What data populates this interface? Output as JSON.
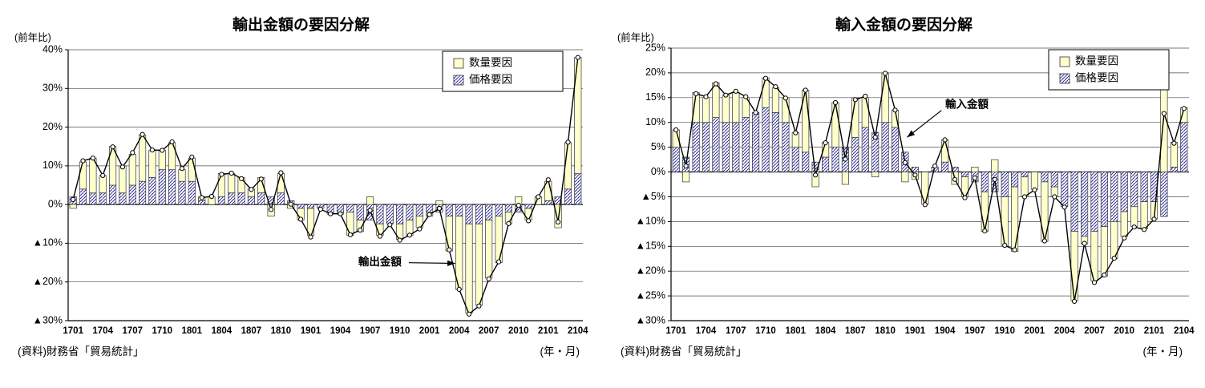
{
  "chart_data": [
    {
      "type": "bar",
      "title": "輸出金額の要因分解",
      "axis_note": "(前年比)",
      "xlabel_note": "(年・月)",
      "source": "(資料)財務省「貿易統計」",
      "legend": [
        "数量要因",
        "価格要因"
      ],
      "ylim": [
        -30,
        40
      ],
      "ytick_step": 10,
      "negative_tick_prefix": "▲",
      "colors": {
        "quantity": "#FFFFCC",
        "price_hatch": "#3333A0",
        "line": "#000000"
      },
      "categories": [
        "1701",
        "1702",
        "1703",
        "1704",
        "1705",
        "1706",
        "1707",
        "1708",
        "1709",
        "1710",
        "1711",
        "1712",
        "1801",
        "1802",
        "1803",
        "1804",
        "1805",
        "1806",
        "1807",
        "1808",
        "1809",
        "1810",
        "1811",
        "1812",
        "1901",
        "1902",
        "1903",
        "1904",
        "1905",
        "1906",
        "1907",
        "1908",
        "1909",
        "1910",
        "1911",
        "1912",
        "2001",
        "2002",
        "2003",
        "2004",
        "2005",
        "2006",
        "2007",
        "2008",
        "2009",
        "2010",
        "2011",
        "2012",
        "2101",
        "2102",
        "2103",
        "2104"
      ],
      "x_tick_labels": [
        "1701",
        "1704",
        "1707",
        "1710",
        "1801",
        "1804",
        "1807",
        "1810",
        "1901",
        "1904",
        "1907",
        "1910",
        "2001",
        "2004",
        "2007",
        "2010",
        "2101",
        "2104"
      ],
      "series": [
        {
          "name": "数量要因",
          "type": "bar",
          "values": [
            -1,
            7,
            9,
            4.5,
            10,
            7,
            8,
            12,
            7,
            5,
            7,
            3,
            6,
            1,
            2,
            6,
            5,
            4,
            2,
            4,
            -3,
            5,
            -1,
            -3,
            -7,
            0,
            -0.5,
            -0.5,
            -6,
            -3,
            2,
            -3,
            0,
            -4,
            -4,
            -3,
            -1,
            1,
            -9,
            -19,
            -23,
            -21,
            -15,
            -12,
            -3,
            2,
            -3,
            2,
            5,
            -6,
            12,
            30
          ]
        },
        {
          "name": "価格要因",
          "type": "bar",
          "values": [
            2,
            4,
            3,
            3,
            5,
            3,
            5,
            6,
            7,
            9,
            9,
            6,
            6,
            1,
            0,
            2,
            3,
            3,
            2,
            3,
            2,
            3,
            1,
            -1,
            -1,
            -1,
            -2,
            -2,
            -2,
            -4,
            -4,
            -5,
            -5,
            -5,
            -4,
            -3,
            -2,
            -2,
            -3,
            -3,
            -5,
            -5,
            -4,
            -3,
            -2,
            -2,
            -1,
            0,
            1,
            2,
            4,
            8
          ]
        },
        {
          "name": "輸出金額",
          "type": "line",
          "values": [
            1.3,
            11.3,
            12,
            7.5,
            14.9,
            9.7,
            13.4,
            18.1,
            14.1,
            14,
            16.2,
            9.3,
            12.3,
            1.8,
            2.1,
            7.8,
            8.1,
            6.7,
            3.9,
            6.6,
            -1.3,
            8.2,
            0.1,
            -3.8,
            -8.4,
            -1.2,
            -2.4,
            -2.4,
            -7.8,
            -6.6,
            -1.5,
            -8.2,
            -5.2,
            -9.2,
            -7.9,
            -6.3,
            -2.6,
            -1,
            -11.7,
            -21.9,
            -28.3,
            -26.2,
            -19.2,
            -14.8,
            -4.9,
            -0.2,
            -4.2,
            2,
            6.4,
            -4.5,
            16.1,
            38
          ]
        }
      ],
      "annotation": {
        "text": "輸出金額",
        "text_cat": 31,
        "text_value": -15,
        "tip_cat": 38.6,
        "tip_value": -15.2
      }
    },
    {
      "type": "bar",
      "title": "輸入金額の要因分解",
      "axis_note": "(前年比)",
      "xlabel_note": "(年・月)",
      "source": "(資料)財務省「貿易統計」",
      "legend": [
        "数量要因",
        "価格要因"
      ],
      "ylim": [
        -30,
        25
      ],
      "ytick_step": 5,
      "negative_tick_prefix": "▲",
      "colors": {
        "quantity": "#FFFFCC",
        "price_hatch": "#3333A0",
        "line": "#000000"
      },
      "categories": [
        "1701",
        "1702",
        "1703",
        "1704",
        "1705",
        "1706",
        "1707",
        "1708",
        "1709",
        "1710",
        "1711",
        "1712",
        "1801",
        "1802",
        "1803",
        "1804",
        "1805",
        "1806",
        "1807",
        "1808",
        "1809",
        "1810",
        "1811",
        "1812",
        "1901",
        "1902",
        "1903",
        "1904",
        "1905",
        "1906",
        "1907",
        "1908",
        "1909",
        "1910",
        "1911",
        "1912",
        "2001",
        "2002",
        "2003",
        "2004",
        "2005",
        "2006",
        "2007",
        "2008",
        "2009",
        "2010",
        "2011",
        "2012",
        "2101",
        "2102",
        "2103",
        "2104"
      ],
      "x_tick_labels": [
        "1701",
        "1704",
        "1707",
        "1710",
        "1801",
        "1804",
        "1807",
        "1810",
        "1901",
        "1904",
        "1907",
        "1910",
        "2001",
        "2004",
        "2007",
        "2010",
        "2101",
        "2104"
      ],
      "series": [
        {
          "name": "数量要因",
          "type": "bar",
          "values": [
            3.5,
            -2,
            6,
            5,
            7,
            5.5,
            6,
            4,
            0,
            6,
            5,
            5,
            3,
            12.5,
            -3,
            3,
            9,
            -2.5,
            8,
            6,
            -1,
            10,
            3.5,
            -2,
            -1.5,
            -6.5,
            0,
            4.5,
            -2.5,
            -4,
            1,
            -8,
            2.5,
            -10,
            -13,
            -4,
            -3.5,
            -12,
            -2,
            0,
            -14,
            -1.5,
            -10,
            -10,
            -7.5,
            -5,
            -4,
            -5.5,
            -3.5,
            21,
            5,
            3
          ]
        },
        {
          "name": "価格要因",
          "type": "bar",
          "values": [
            5,
            3,
            10,
            10,
            11,
            10,
            10,
            11,
            12,
            13,
            12,
            10,
            5,
            4,
            2,
            3,
            5,
            5,
            7,
            9,
            8,
            10,
            9,
            4,
            1,
            0,
            1,
            2,
            1,
            -1,
            -2,
            -4,
            -4,
            -5,
            -3,
            -1,
            0,
            -2,
            -3,
            -7,
            -12,
            -13,
            -12,
            -11,
            -10,
            -8,
            -7,
            -6,
            -6,
            -9,
            1,
            10
          ]
        },
        {
          "name": "輸入金額",
          "type": "line",
          "values": [
            8.5,
            1.2,
            15.8,
            15.2,
            17.8,
            15.5,
            16.3,
            15.2,
            12,
            18.9,
            17.2,
            14.9,
            7.9,
            16.5,
            -0.6,
            5.9,
            14,
            2.6,
            14.6,
            15.3,
            7,
            19.9,
            12.5,
            1.9,
            -0.6,
            -6.6,
            1.2,
            6.5,
            -1.5,
            -5.2,
            -1.2,
            -11.9,
            -1.5,
            -14.8,
            -15.7,
            -5,
            -3.6,
            -13.9,
            -5,
            -7.1,
            -26.1,
            -14.4,
            -22.3,
            -20.8,
            -17.4,
            -13.3,
            -11.1,
            -11.6,
            -9.5,
            11.8,
            5.8,
            12.8
          ]
        }
      ],
      "annotation": {
        "text": "輸入金額",
        "text_cat": 29.2,
        "text_value": 13.5,
        "tip_cat": 23.2,
        "tip_value": 7
      }
    }
  ]
}
